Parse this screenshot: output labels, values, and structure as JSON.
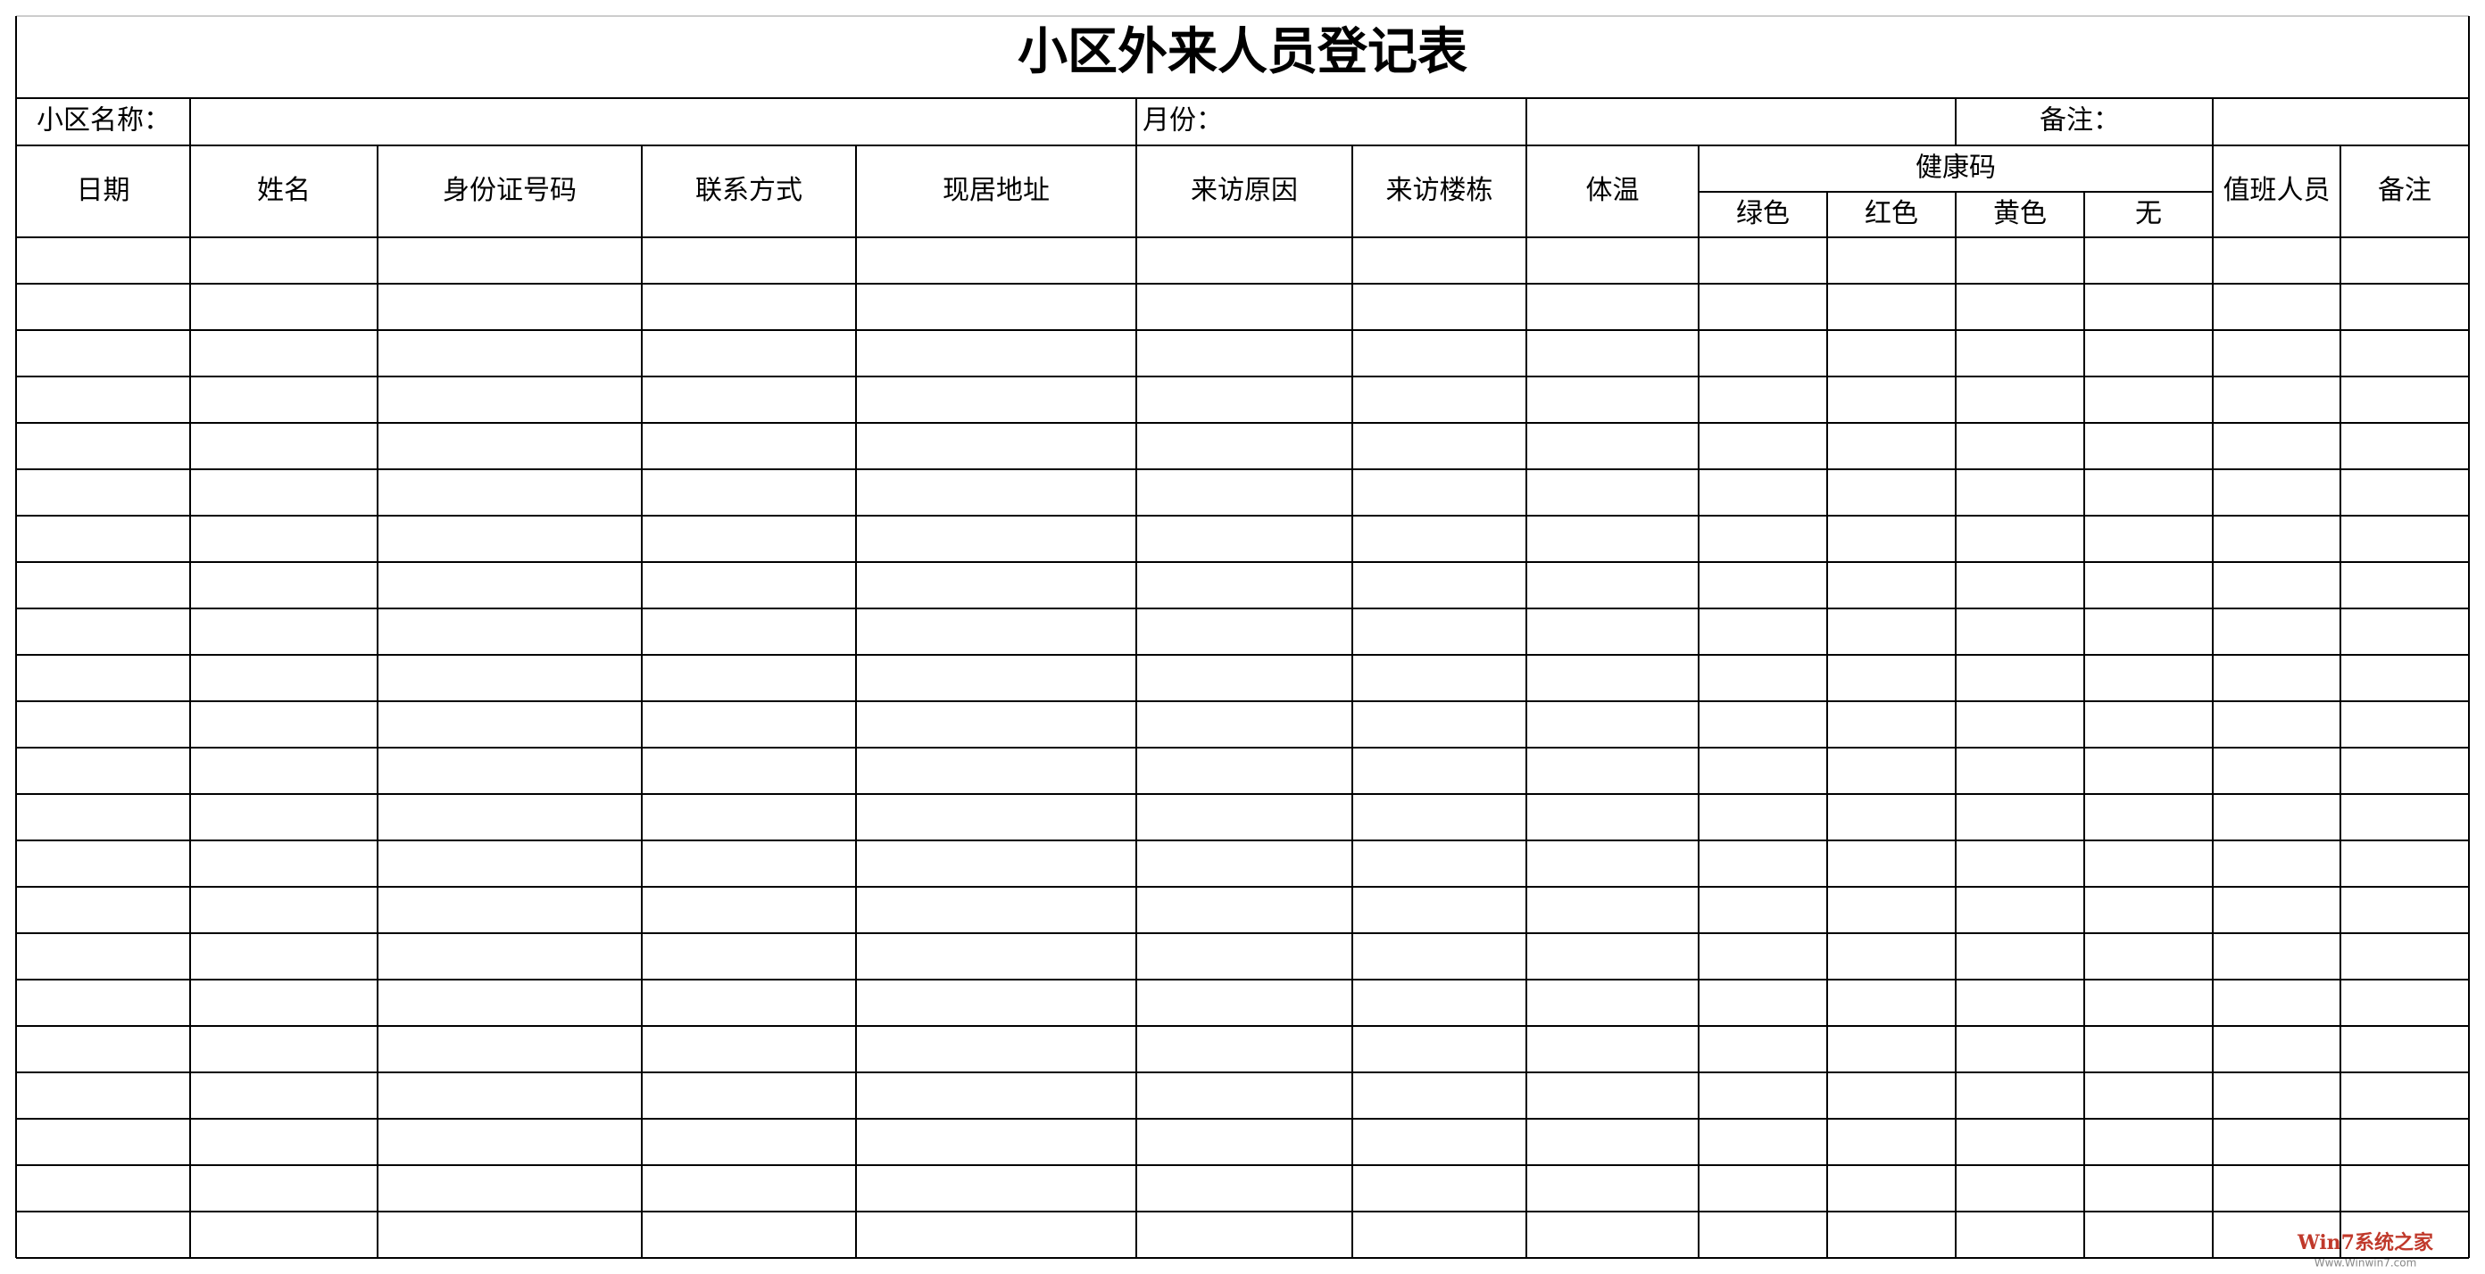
{
  "title": "小区外来人员登记表",
  "info": {
    "community_label": "小区名称：",
    "month_label": "月份：",
    "remark_label": "备注："
  },
  "header": {
    "columns": [
      "日期",
      "姓名",
      "身份证号码",
      "联系方式",
      "现居地址",
      "来访原因",
      "来访楼栋",
      "体温"
    ],
    "health_code": {
      "label": "健康码",
      "options": [
        "绿色",
        "红色",
        "黄色",
        "无"
      ]
    },
    "tail_columns": [
      "值班人员",
      "备注"
    ]
  },
  "watermark": {
    "name": "Win7系统之家",
    "url": "Www.Winwin7.com"
  }
}
